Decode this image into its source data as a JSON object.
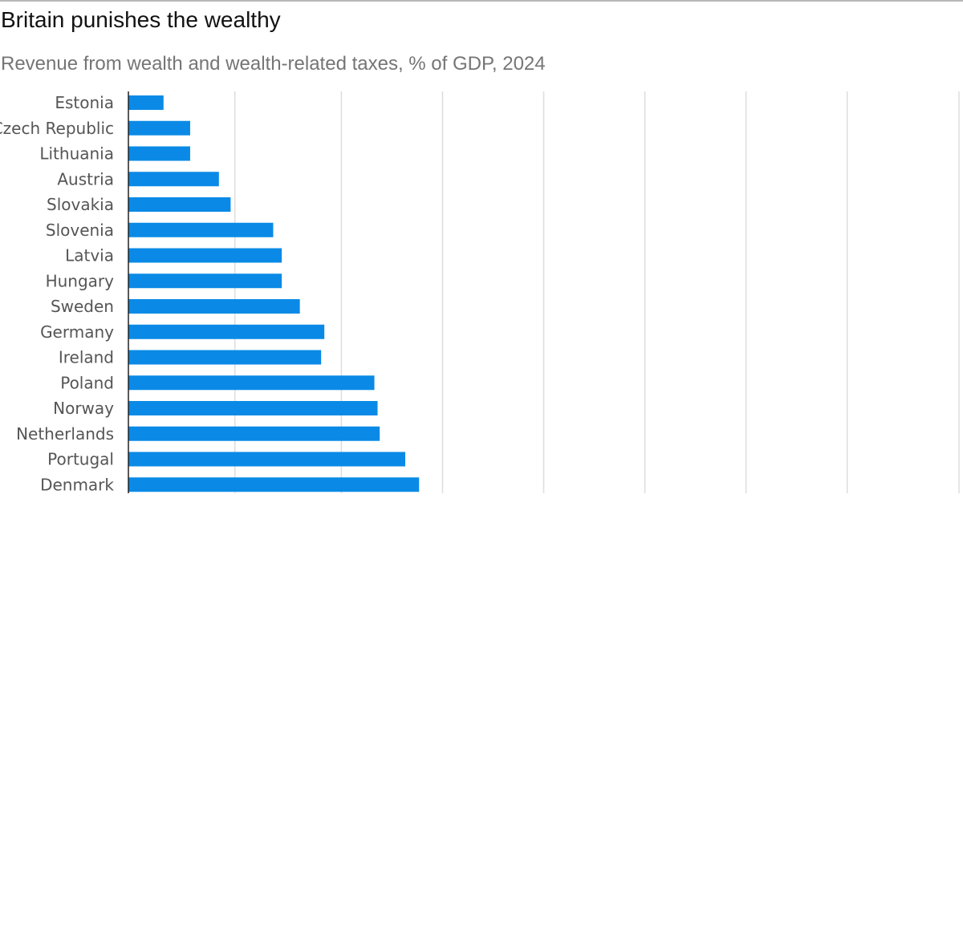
{
  "header": {
    "title": "Britain punishes the wealthy",
    "subtitle": "Revenue from wealth and wealth-related taxes, % of GDP, 2024"
  },
  "colors": {
    "bar": "#0a8ae6",
    "gridline": "#dddddd",
    "axis": "#222222",
    "label": "#555555"
  },
  "chart_data": {
    "type": "bar",
    "orientation": "horizontal",
    "categories": [
      "Estonia",
      "Czech Republic",
      "Lithuania",
      "Austria",
      "Slovakia",
      "Slovenia",
      "Latvia",
      "Hungary",
      "Sweden",
      "Germany",
      "Ireland",
      "Poland",
      "Norway",
      "Netherlands",
      "Portugal",
      "Denmark"
    ],
    "values": [
      0.33,
      0.58,
      0.58,
      0.85,
      0.96,
      1.36,
      1.44,
      1.44,
      1.61,
      1.84,
      1.81,
      2.31,
      2.34,
      2.36,
      2.6,
      2.73
    ],
    "xlim": [
      0,
      7.8
    ],
    "gridlines": [
      1,
      2,
      2.95,
      3.9,
      4.85,
      5.8,
      6.75,
      7.8
    ],
    "grid": true,
    "legend": "none"
  }
}
